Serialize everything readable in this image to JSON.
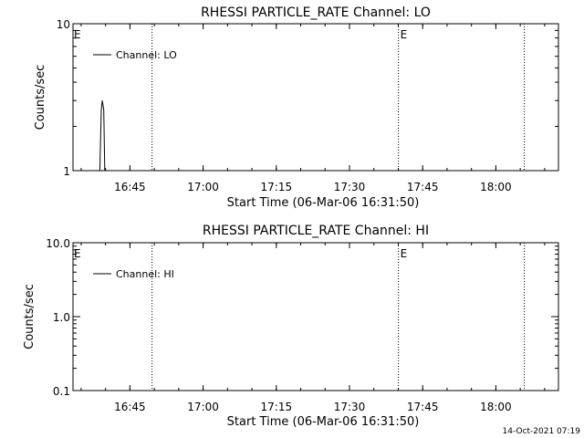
{
  "footer_timestamp": "14-Oct-2021 07:19",
  "chart_data": [
    {
      "type": "line",
      "title": "RHESSI PARTICLE_RATE Channel: LO",
      "xlabel": "Start Time (06-Mar-06 16:31:50)",
      "ylabel": "Counts/sec",
      "yscale": "log",
      "ylim": [
        1,
        10
      ],
      "xlim_minutes": [
        16.5,
        116.0
      ],
      "x_ticks": [
        {
          "min": 28.17,
          "label": "16:45"
        },
        {
          "min": 43.17,
          "label": "17:00"
        },
        {
          "min": 58.17,
          "label": "17:15"
        },
        {
          "min": 73.17,
          "label": "17:30"
        },
        {
          "min": 88.17,
          "label": "17:45"
        },
        {
          "min": 103.17,
          "label": "18:00"
        }
      ],
      "y_ticks": [
        {
          "value": 1,
          "label": "1"
        },
        {
          "value": 10,
          "label": "10"
        }
      ],
      "legend": "Channel: LO",
      "series": [
        {
          "name": "Channel: LO",
          "x": [
            22.0,
            22.3,
            22.5,
            22.8,
            23.0
          ],
          "y": [
            1.0,
            2.6,
            3.0,
            2.6,
            1.0
          ]
        }
      ],
      "event_markers": [
        {
          "x": 32.7,
          "label": ""
        },
        {
          "x": 83.2,
          "label": "E"
        },
        {
          "x": 109.0,
          "label": ""
        }
      ],
      "start_marker_label": "E"
    },
    {
      "type": "line",
      "title": "RHESSI PARTICLE_RATE Channel: HI",
      "xlabel": "Start Time (06-Mar-06 16:31:50)",
      "ylabel": "Counts/sec",
      "yscale": "log",
      "ylim": [
        0.1,
        10
      ],
      "xlim_minutes": [
        16.5,
        116.0
      ],
      "x_ticks": [
        {
          "min": 28.17,
          "label": "16:45"
        },
        {
          "min": 43.17,
          "label": "17:00"
        },
        {
          "min": 58.17,
          "label": "17:15"
        },
        {
          "min": 73.17,
          "label": "17:30"
        },
        {
          "min": 88.17,
          "label": "17:45"
        },
        {
          "min": 103.17,
          "label": "18:00"
        }
      ],
      "y_ticks": [
        {
          "value": 0.1,
          "label": "0.1"
        },
        {
          "value": 1,
          "label": "1.0"
        },
        {
          "value": 10,
          "label": "10.0"
        }
      ],
      "legend": "Channel: HI",
      "series": [
        {
          "name": "Channel: HI",
          "x": [],
          "y": []
        }
      ],
      "event_markers": [
        {
          "x": 32.7,
          "label": ""
        },
        {
          "x": 83.2,
          "label": "E"
        },
        {
          "x": 109.0,
          "label": ""
        }
      ],
      "start_marker_label": "E"
    }
  ]
}
